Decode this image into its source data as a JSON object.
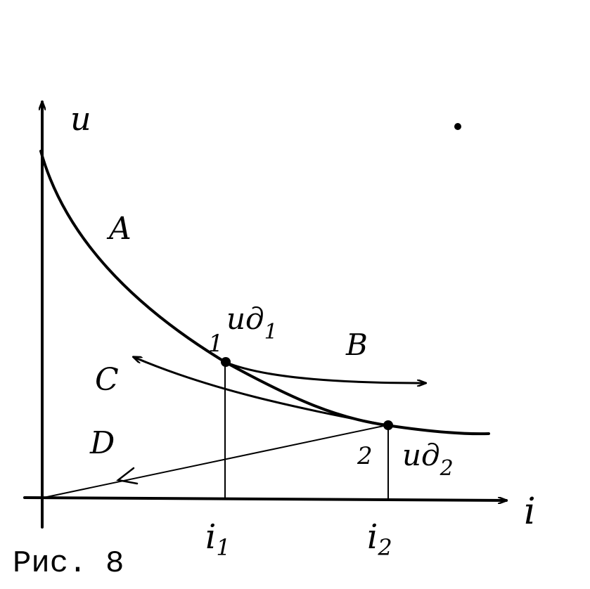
{
  "figure": {
    "caption": "Рис. 8",
    "axes": {
      "y_label": "u",
      "x_label": "i",
      "x_ticks": [
        {
          "main": "i",
          "sub": "1"
        },
        {
          "main": "i",
          "sub": "2"
        }
      ]
    },
    "curves": {
      "A": "A",
      "B": "B",
      "C": "C",
      "D": "D"
    },
    "points": [
      {
        "label": "1",
        "value_main": "uд",
        "value_sub": "1"
      },
      {
        "label": "2",
        "value_main": "uд",
        "value_sub": "2"
      }
    ],
    "color": "#000000"
  }
}
